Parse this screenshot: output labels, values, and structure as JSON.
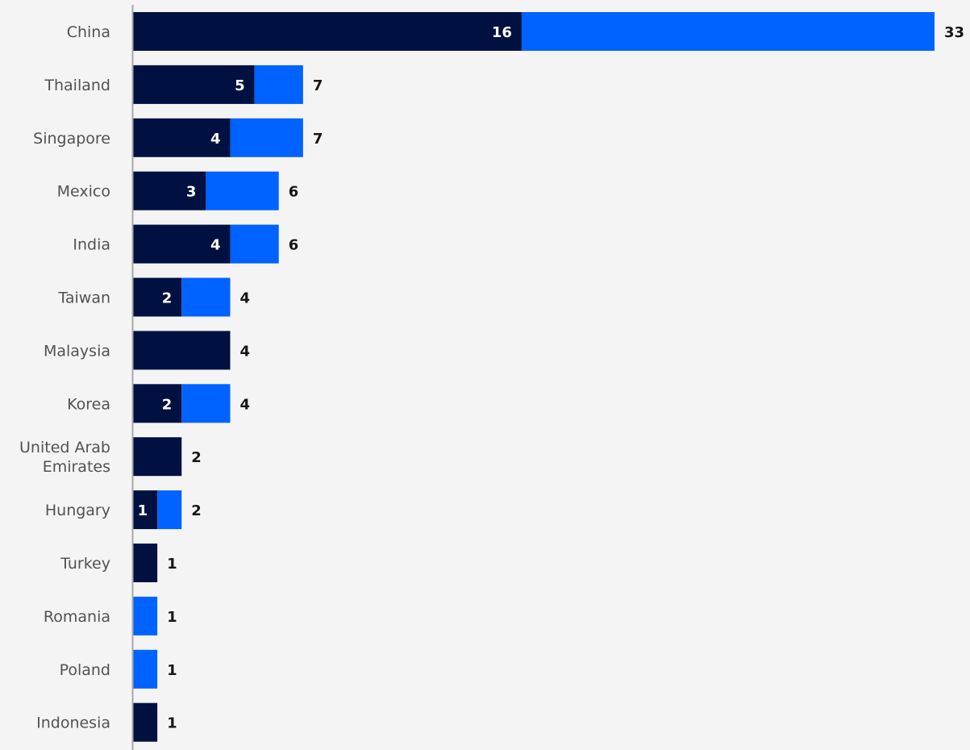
{
  "chart_data": {
    "type": "bar",
    "orientation": "horizontal",
    "stacked": true,
    "title": "",
    "xlabel": "",
    "ylabel": "",
    "xlim": [
      0,
      33
    ],
    "grid": false,
    "legend": "none",
    "categories": [
      "China",
      "Thailand",
      "Singapore",
      "Mexico",
      "India",
      "Taiwan",
      "Malaysia",
      "Korea",
      "United Arab Emirates",
      "Hungary",
      "Turkey",
      "Romania",
      "Poland",
      "Indonesia"
    ],
    "series": [
      {
        "color": "#001141",
        "values": [
          16,
          5,
          4,
          3,
          4,
          2,
          4,
          2,
          2,
          1,
          1,
          0,
          0,
          1
        ],
        "labels": [
          "16",
          "5",
          "4",
          "3",
          "4",
          "2",
          "",
          "2",
          "",
          "1",
          "",
          "",
          "",
          ""
        ]
      },
      {
        "color": "#0062ff",
        "values": [
          17,
          2,
          3,
          3,
          2,
          2,
          0,
          2,
          0,
          1,
          0,
          1,
          1,
          0
        ],
        "labels": [
          "",
          "",
          "",
          "",
          "",
          "",
          "",
          "",
          "",
          "",
          "",
          "",
          "",
          ""
        ]
      }
    ],
    "totals": [
      "33",
      "7",
      "7",
      "6",
      "6",
      "4",
      "4",
      "4",
      "2",
      "2",
      "1",
      "1",
      "1",
      "1"
    ]
  }
}
